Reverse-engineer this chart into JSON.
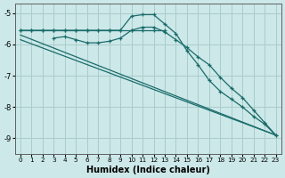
{
  "xlabel": "Humidex (Indice chaleur)",
  "background_color": "#cce8e8",
  "grid_color": "#aacccc",
  "line_color": "#1a6b6b",
  "xlim": [
    -0.5,
    23.5
  ],
  "ylim": [
    -9.5,
    -4.7
  ],
  "yticks": [
    -9,
    -8,
    -7,
    -6,
    -5
  ],
  "xticks": [
    0,
    1,
    2,
    3,
    4,
    5,
    6,
    7,
    8,
    9,
    10,
    11,
    12,
    13,
    14,
    15,
    16,
    17,
    18,
    19,
    20,
    21,
    22,
    23
  ],
  "curve_main_x": [
    0,
    1,
    2,
    3,
    4,
    5,
    6,
    7,
    8,
    9,
    10,
    11,
    12,
    13,
    14,
    15,
    16,
    17,
    18,
    19,
    20,
    21,
    22,
    23
  ],
  "curve_main_y": [
    -5.55,
    -5.55,
    -5.55,
    -5.55,
    -5.55,
    -5.55,
    -5.55,
    -5.55,
    -5.55,
    -5.55,
    -5.1,
    -5.05,
    -5.05,
    -5.35,
    -5.65,
    -6.2,
    -6.65,
    -7.15,
    -7.5,
    -7.75,
    -8.0,
    -8.3,
    -8.55,
    -8.9
  ],
  "curve2_x": [
    3,
    4,
    5,
    6,
    7,
    8,
    9,
    10,
    11,
    12,
    13,
    14,
    15,
    16,
    17,
    18,
    19,
    20,
    21,
    22,
    23
  ],
  "curve2_y": [
    -5.8,
    -5.75,
    -5.85,
    -5.95,
    -5.95,
    -5.9,
    -5.8,
    -5.55,
    -5.45,
    -5.45,
    -5.6,
    -5.85,
    -6.1,
    -6.4,
    -6.65,
    -7.05,
    -7.4,
    -7.7,
    -8.1,
    -8.5,
    -8.9
  ],
  "line1_x": [
    0,
    23
  ],
  "line1_y": [
    -5.7,
    -8.9
  ],
  "line2_x": [
    0,
    23
  ],
  "line2_y": [
    -5.85,
    -8.9
  ],
  "flat_x": [
    0,
    1,
    2,
    3,
    4,
    5,
    6,
    7,
    8,
    9,
    10,
    11,
    12,
    13
  ],
  "flat_y": [
    -5.55,
    -5.55,
    -5.55,
    -5.55,
    -5.55,
    -5.55,
    -5.55,
    -5.55,
    -5.55,
    -5.55,
    -5.55,
    -5.55,
    -5.55,
    -5.55
  ]
}
